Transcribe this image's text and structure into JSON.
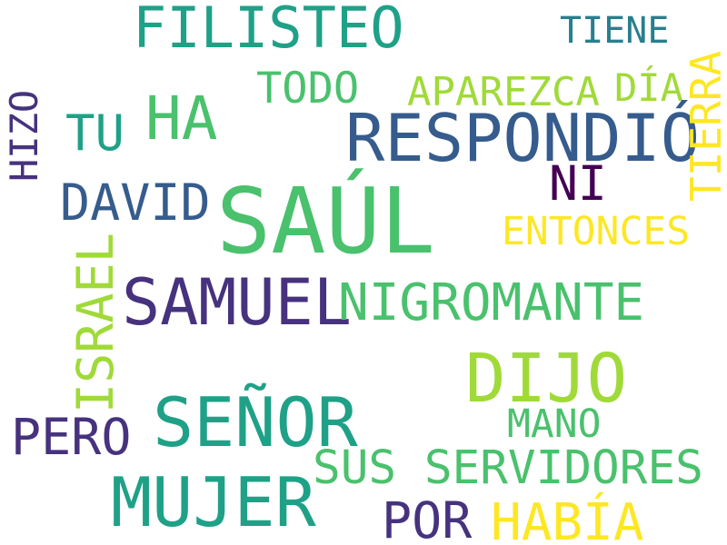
{
  "palette": {
    "dark_purple": "#440154",
    "indigo": "#46327e",
    "blue": "#365c8d",
    "teal": "#277f8e",
    "green_teal": "#1fa187",
    "green": "#4ac16d",
    "light_green": "#a0da39",
    "yellow": "#fde725"
  },
  "words": {
    "saul": "SAÚL",
    "filisteo": "FILISTEO",
    "respondio": "RESPONDIÓ",
    "samuel": "SAMUEL",
    "senor": "SEÑOR",
    "dijo": "DIJO",
    "mujer": "MUJER",
    "nigromante": "NIGROMANTE",
    "ha": "HA",
    "david": "DAVID",
    "tu": "TU",
    "todo": "TODO",
    "aparezca": "APAREZCA",
    "dia": "DÍA",
    "tiene": "TIENE",
    "ni": "NI",
    "tierra": "TIERRA",
    "entonces": "ENTONCES",
    "israel": "ISRAEL",
    "hizo": "HIZO",
    "pero": "PERO",
    "mano": "MANO",
    "sus_servidores": "SUS SERVIDORES",
    "por": "POR",
    "habia": "HABÍA"
  }
}
